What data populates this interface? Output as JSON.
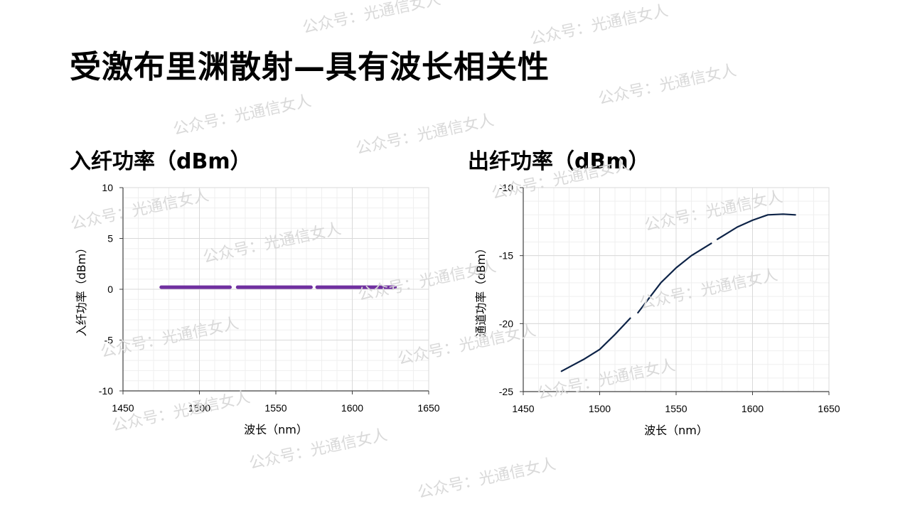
{
  "slide": {
    "title": "受激布里渊散射—具有波长相关性"
  },
  "watermark": "公众号：光通信女人",
  "colors": {
    "input_series": "#7030a0",
    "output_series": "#0d2347",
    "grid": "#d9d9d9",
    "grid_minor": "#efefef",
    "axis": "#404040"
  },
  "chart_data": [
    {
      "id": "input-power",
      "type": "line",
      "title": "入纤功率（dBm）",
      "xlabel": "波长（nm）",
      "ylabel": "入纤功率（dBm）",
      "xlim": [
        1450,
        1650
      ],
      "ylim": [
        -10,
        10
      ],
      "xticks": [
        1450,
        1500,
        1550,
        1600,
        1650
      ],
      "yticks": [
        -10,
        -5,
        0,
        5,
        10
      ],
      "grid": true,
      "series": [
        {
          "x": [
            1475,
            1500,
            1520,
            1525,
            1550,
            1573,
            1577,
            1600,
            1628
          ],
          "y": [
            0.2,
            0.2,
            0.2,
            0.2,
            0.2,
            0.2,
            0.2,
            0.2,
            0.2
          ],
          "gaps_after_x": [
            1520,
            1573
          ]
        }
      ]
    },
    {
      "id": "output-power",
      "type": "line",
      "title": "出纤功率（dBm）",
      "xlabel": "波长（nm）",
      "ylabel": "通道功率（dBm）",
      "xlim": [
        1450,
        1650
      ],
      "ylim": [
        -25,
        -10
      ],
      "xticks": [
        1450,
        1500,
        1550,
        1600,
        1650
      ],
      "yticks": [
        -25,
        -20,
        -15,
        -10
      ],
      "grid": true,
      "series": [
        {
          "x": [
            1475,
            1490,
            1500,
            1510,
            1520,
            1525,
            1540,
            1550,
            1560,
            1573,
            1577,
            1590,
            1600,
            1610,
            1620,
            1628
          ],
          "y": [
            -23.5,
            -22.6,
            -21.9,
            -20.8,
            -19.6,
            -19.2,
            -17.0,
            -15.9,
            -15.0,
            -14.1,
            -13.8,
            -12.9,
            -12.4,
            -12.0,
            -11.95,
            -12.0
          ],
          "gaps_after_x": [
            1520,
            1573
          ]
        }
      ]
    }
  ]
}
